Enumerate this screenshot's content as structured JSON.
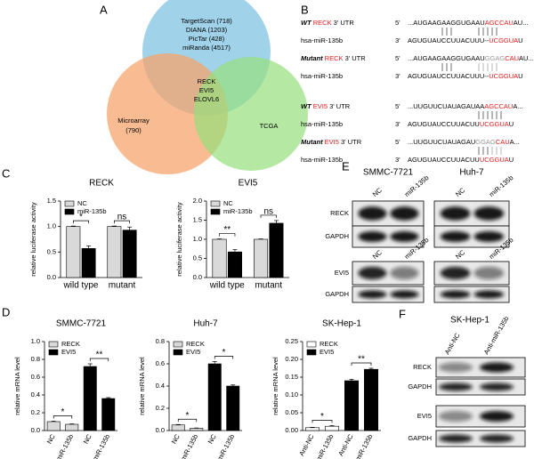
{
  "panel_labels": [
    "A",
    "B",
    "C",
    "D",
    "E",
    "F"
  ],
  "venn": {
    "databases": [
      "TargetScan (718)",
      "DIANA (1203)",
      "PicTar (428)",
      "miRanda (4517)"
    ],
    "microarray": [
      "Microarray",
      "(790)"
    ],
    "tcga": "TCGA",
    "overlap": [
      "RECK",
      "EVI5",
      "ELOVL6"
    ]
  },
  "sequences": [
    {
      "name": [
        {
          "text": "WT",
          "style": "bi"
        },
        {
          "text": " RECK",
          "color": "#e41a1c"
        },
        {
          "text": " 3' UTR"
        }
      ],
      "end": "5'",
      "seq": [
        {
          "text": "...AUGAAGAAGGUGAAU"
        },
        {
          "text": "AGCCAU",
          "color": "#e41a1c"
        },
        {
          "text": "AU..."
        }
      ]
    },
    {
      "name": [
        {
          "text": "hsa-miR-135b"
        }
      ],
      "end": "3'",
      "seq": [
        {
          "text": "AGUGUAUCCUUACUUU--"
        },
        {
          "text": "UCGGUA",
          "color": "#e41a1c"
        },
        {
          "text": "U"
        }
      ]
    },
    {
      "name": [
        {
          "text": "Mutant",
          "style": "bi"
        },
        {
          "text": " RECK",
          "color": "#e41a1c"
        },
        {
          "text": " 3' UTR"
        }
      ],
      "end": "5'",
      "seq": [
        {
          "text": "...AUGAAGAAGGUGAAU"
        },
        {
          "text": "GGAG",
          "color": "#999999"
        },
        {
          "text": "CAU",
          "color": "#e41a1c"
        },
        {
          "text": "AU..."
        }
      ]
    },
    {
      "name": [
        {
          "text": "hsa-miR-135b"
        }
      ],
      "end": "3'",
      "seq": [
        {
          "text": "AGUGUAUCCUUACUUU--"
        },
        {
          "text": "UCGGUA",
          "color": "#e41a1c"
        },
        {
          "text": "U"
        }
      ]
    },
    {
      "name": [
        {
          "text": "WT",
          "style": "bi"
        },
        {
          "text": " EVI5",
          "color": "#e41a1c"
        },
        {
          "text": " 3' UTR"
        }
      ],
      "end": "5'",
      "seq": [
        {
          "text": "...UUGUUCUAUAGAUAA"
        },
        {
          "text": "AGCCAU",
          "color": "#e41a1c"
        },
        {
          "text": "A..."
        }
      ]
    },
    {
      "name": [
        {
          "text": "hsa-miR-135b"
        }
      ],
      "end": "3'",
      "seq": [
        {
          "text": "AGUGUAUCCUUACUU"
        },
        {
          "text": "UCGGUA",
          "color": "#e41a1c"
        },
        {
          "text": "U"
        }
      ]
    },
    {
      "name": [
        {
          "text": "Mutant",
          "style": "bi"
        },
        {
          "text": " EVI5",
          "color": "#e41a1c"
        },
        {
          "text": " 3' UTR"
        }
      ],
      "end": "5'",
      "seq": [
        {
          "text": "...UUGUUCUAUAGAU"
        },
        {
          "text": "GGAG",
          "color": "#999999"
        },
        {
          "text": "CAU",
          "color": "#e41a1c"
        },
        {
          "text": "A..."
        }
      ]
    },
    {
      "name": [
        {
          "text": "hsa-miR-135b"
        }
      ],
      "end": "3'",
      "seq": [
        {
          "text": "AGUGUAUCCUUACUU"
        },
        {
          "text": "UCGGUA",
          "color": "#e41a1c"
        },
        {
          "text": "U"
        }
      ]
    }
  ],
  "blot_e": {
    "cell_lines": [
      "SMMC-7721",
      "Huh-7"
    ],
    "lanes": [
      "NC",
      "miR-135b"
    ],
    "rows_top": [
      "RECK",
      "GAPDH"
    ],
    "rows_bottom": [
      "EVI5",
      "GAPDH"
    ]
  },
  "blot_f": {
    "cell_line": "SK-Hep-1",
    "lanes": [
      "Anti-NC",
      "Anti-miR-135b"
    ],
    "rows": [
      "RECK",
      "GAPDH",
      "EVI5",
      "GAPDH"
    ]
  },
  "chart_data": [
    {
      "type": "bar",
      "title": "RECK",
      "y_label": "relative luciferase activity",
      "categories": [
        "wild type",
        "mutant"
      ],
      "series": [
        {
          "name": "NC",
          "color": "#d9d9d9",
          "values": [
            1.0,
            1.0
          ],
          "errors": [
            0.01,
            0.01
          ]
        },
        {
          "name": "miR-135b",
          "color": "#000000",
          "values": [
            0.57,
            0.93
          ],
          "errors": [
            0.05,
            0.06
          ]
        }
      ],
      "ylim": [
        0,
        1.5
      ],
      "yticks": [
        {
          "value": 0,
          "label": "0.0"
        },
        {
          "value": 0.5,
          "label": "0.5"
        },
        {
          "value": 1.0,
          "label": "1.0"
        },
        {
          "value": 1.5,
          "label": "1.5"
        }
      ],
      "annotations": [
        "*",
        "ns"
      ],
      "legend": "upper left"
    },
    {
      "type": "bar",
      "title": "EVI5",
      "y_label": "relative luciferase activity",
      "categories": [
        "wild type",
        "mutant"
      ],
      "series": [
        {
          "name": "NC",
          "color": "#d9d9d9",
          "values": [
            1.0,
            1.0
          ],
          "errors": [
            0.01,
            0.01
          ]
        },
        {
          "name": "miR-135b",
          "color": "#000000",
          "values": [
            0.67,
            1.42
          ],
          "errors": [
            0.06,
            0.07
          ]
        }
      ],
      "ylim": [
        0,
        2.0
      ],
      "yticks": [
        {
          "value": 0,
          "label": "0.0"
        },
        {
          "value": 0.5,
          "label": "0.5"
        },
        {
          "value": 1.0,
          "label": "1.0"
        },
        {
          "value": 1.5,
          "label": "1.5"
        },
        {
          "value": 2.0,
          "label": "2.0"
        }
      ],
      "annotations": [
        "**",
        "ns"
      ],
      "legend": "upper left"
    },
    {
      "type": "bar",
      "title": "SMMC-7721",
      "y_label": "relative mRNA level",
      "categories": [
        "NC",
        "miR-135b",
        "NC",
        "miR-135b"
      ],
      "series": [
        {
          "name": "RECK",
          "color": "#d9d9d9",
          "values": [
            0.1,
            0.07,
            null,
            null
          ],
          "errors": [
            0.005,
            0.005,
            null,
            null
          ]
        },
        {
          "name": "EVI5",
          "color": "#000000",
          "values": [
            null,
            null,
            0.72,
            0.36
          ],
          "errors": [
            null,
            null,
            0.03,
            0.01
          ]
        }
      ],
      "ylim": [
        0,
        1.0
      ],
      "yticks": [
        {
          "value": 0,
          "label": "0.0"
        },
        {
          "value": 0.2,
          "label": "0.2"
        },
        {
          "value": 0.4,
          "label": "0.4"
        },
        {
          "value": 0.6,
          "label": "0.6"
        },
        {
          "value": 0.8,
          "label": "0.8"
        },
        {
          "value": 1.0,
          "label": "1.0"
        }
      ],
      "annotations": [
        "*",
        "**"
      ],
      "legend": "upper left"
    },
    {
      "type": "bar",
      "title": "Huh-7",
      "y_label": "relative mRNA level",
      "categories": [
        "NC",
        "miR-135b",
        "NC",
        "miR-135b"
      ],
      "series": [
        {
          "name": "RECK",
          "color": "#d9d9d9",
          "values": [
            0.05,
            0.02,
            null,
            null
          ],
          "errors": [
            0.004,
            0.003,
            null,
            null
          ]
        },
        {
          "name": "EVI5",
          "color": "#000000",
          "values": [
            null,
            null,
            0.6,
            0.4
          ],
          "errors": [
            null,
            null,
            0.02,
            0.01
          ]
        }
      ],
      "ylim": [
        0,
        0.8
      ],
      "yticks": [
        {
          "value": 0,
          "label": "0.0"
        },
        {
          "value": 0.2,
          "label": "0.2"
        },
        {
          "value": 0.4,
          "label": "0.4"
        },
        {
          "value": 0.6,
          "label": "0.6"
        },
        {
          "value": 0.8,
          "label": "0.8"
        }
      ],
      "annotations": [
        "*",
        "*"
      ],
      "legend": "upper left"
    },
    {
      "type": "bar",
      "title": "SK-Hep-1",
      "y_label": "relative mRNA level",
      "categories": [
        "Anti-NC",
        "Anti-miR-135b",
        "Anti-NC",
        "Anti-miR-135b"
      ],
      "series": [
        {
          "name": "RECK",
          "color": "#ffffff",
          "values": [
            0.008,
            0.012,
            null,
            null
          ],
          "errors": [
            0.001,
            0.002,
            null,
            null
          ]
        },
        {
          "name": "EVI5",
          "color": "#000000",
          "values": [
            null,
            null,
            0.14,
            0.172
          ],
          "errors": [
            null,
            null,
            0.004,
            0.003
          ]
        }
      ],
      "ylim": [
        0,
        0.25
      ],
      "yticks": [
        {
          "value": 0,
          "label": "0.00"
        },
        {
          "value": 0.05,
          "label": "0.05"
        },
        {
          "value": 0.1,
          "label": "0.10"
        },
        {
          "value": 0.15,
          "label": "0.15"
        },
        {
          "value": 0.2,
          "label": "0.20"
        },
        {
          "value": 0.25,
          "label": "0.25"
        }
      ],
      "annotations": [
        "*",
        "**"
      ],
      "legend": "upper left"
    }
  ]
}
